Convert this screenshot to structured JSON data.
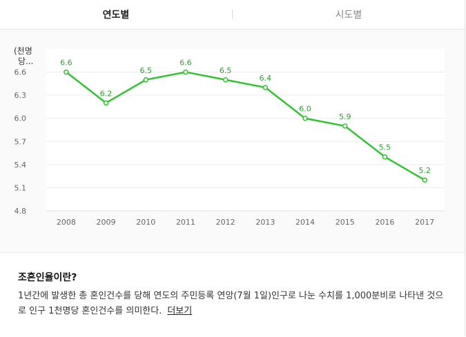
{
  "tabs": [
    {
      "label": "연도별",
      "active": true
    },
    {
      "label": "시도별",
      "active": false
    }
  ],
  "chart_data": {
    "type": "line",
    "unit_label": [
      "(천명",
      "당..."
    ],
    "x": [
      "2008",
      "2009",
      "2010",
      "2011",
      "2012",
      "2013",
      "2014",
      "2015",
      "2016",
      "2017"
    ],
    "series": [
      {
        "values": [
          6.6,
          6.2,
          6.5,
          6.6,
          6.5,
          6.4,
          6.0,
          5.9,
          5.5,
          5.2
        ],
        "color": "#2fc52f"
      }
    ],
    "data_labels": [
      "6.6",
      "6.2",
      "6.5",
      "6.6",
      "6.5",
      "6.4",
      "6.0",
      "5.9",
      "5.5",
      "5.2"
    ],
    "y_ticks": [
      "6.6",
      "6.3",
      "6.0",
      "5.7",
      "5.4",
      "5.1",
      "4.8"
    ],
    "ylim": [
      4.8,
      6.9
    ],
    "grid": true,
    "label_color": "#2fa02f",
    "line_color": "#2fc52f"
  },
  "description": {
    "title": "조혼인율이란?",
    "text": "1년간에 발생한 총 혼인건수를 당해 연도의 주민등록 연앙(7월 1일)인구로 나눈 수치를 1,000분비로 나타낸 것으로 인구 1천명당 혼인건수를 의미한다.",
    "more_label": "더보기"
  }
}
